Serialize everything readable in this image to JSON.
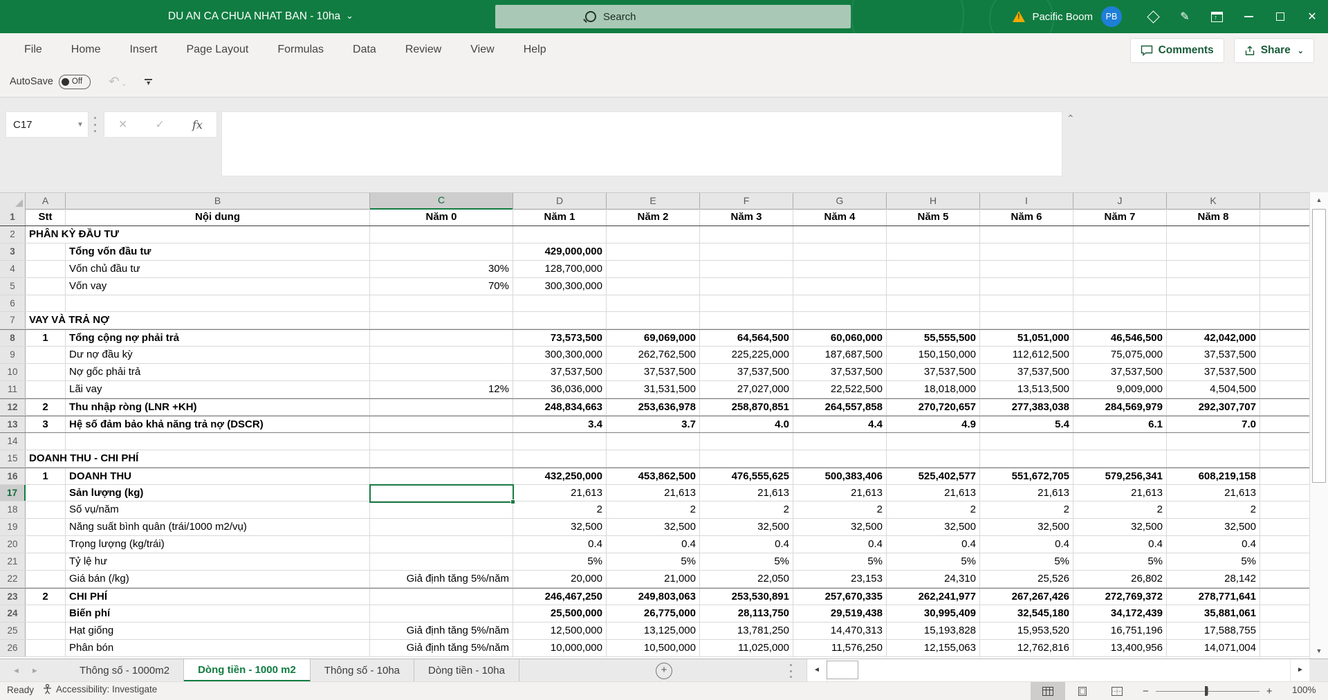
{
  "window": {
    "title": "DU AN CA CHUA NHAT BAN - 10ha",
    "user": "Pacific Boom",
    "avatar_initials": "PB"
  },
  "search": {
    "placeholder": "Search"
  },
  "ribbon": {
    "tabs": [
      "File",
      "Home",
      "Insert",
      "Page Layout",
      "Formulas",
      "Data",
      "Review",
      "View",
      "Help"
    ],
    "comments_label": "Comments",
    "share_label": "Share"
  },
  "quick_access": {
    "autosave_label": "AutoSave",
    "autosave_state": "Off"
  },
  "formula_bar": {
    "name_box": "C17",
    "formula": ""
  },
  "grid": {
    "columns": [
      "A",
      "B",
      "C",
      "D",
      "E",
      "F",
      "G",
      "H",
      "I",
      "J",
      "K"
    ],
    "selected_column": "C",
    "selected_row": 17,
    "selected_cell": "C17",
    "rows": [
      {
        "n": 1,
        "head": true,
        "a": "Stt",
        "b": "Nội dung",
        "c": "Năm 0",
        "v": [
          "Năm 1",
          "Năm 2",
          "Năm 3",
          "Năm 4",
          "Năm 5",
          "Năm 6",
          "Năm 7",
          "Năm 8"
        ]
      },
      {
        "n": 2,
        "span": "PHÂN KỲ ĐẦU TƯ"
      },
      {
        "n": 3,
        "b": "Tổng vốn đầu tư",
        "bold": "all",
        "v": [
          "429,000,000",
          "",
          "",
          "",
          "",
          "",
          "",
          ""
        ]
      },
      {
        "n": 4,
        "b": "Vốn chủ đầu tư",
        "c": "30%",
        "v": [
          "128,700,000",
          "",
          "",
          "",
          "",
          "",
          "",
          ""
        ]
      },
      {
        "n": 5,
        "b": "Vốn vay",
        "c": "70%",
        "v": [
          "300,300,000",
          "",
          "",
          "",
          "",
          "",
          "",
          ""
        ]
      },
      {
        "n": 6
      },
      {
        "n": 7,
        "span": "VAY VÀ TRẢ NỢ"
      },
      {
        "n": 8,
        "a": "1",
        "b": "Tổng cộng nợ phải trả",
        "bold": "all",
        "bt": true,
        "v": [
          "73,573,500",
          "69,069,000",
          "64,564,500",
          "60,060,000",
          "55,555,500",
          "51,051,000",
          "46,546,500",
          "42,042,000"
        ]
      },
      {
        "n": 9,
        "b": "Dư nợ đầu kỳ",
        "v": [
          "300,300,000",
          "262,762,500",
          "225,225,000",
          "187,687,500",
          "150,150,000",
          "112,612,500",
          "75,075,000",
          "37,537,500"
        ]
      },
      {
        "n": 10,
        "b": "Nợ gốc phải trả",
        "v": [
          "37,537,500",
          "37,537,500",
          "37,537,500",
          "37,537,500",
          "37,537,500",
          "37,537,500",
          "37,537,500",
          "37,537,500"
        ]
      },
      {
        "n": 11,
        "b": "Lãi vay",
        "c": "12%",
        "v": [
          "36,036,000",
          "31,531,500",
          "27,027,000",
          "22,522,500",
          "18,018,000",
          "13,513,500",
          "9,009,000",
          "4,504,500"
        ]
      },
      {
        "n": 12,
        "a": "2",
        "b": "Thu nhập ròng (LNR +KH)",
        "bold": "all",
        "bt": true,
        "v": [
          "248,834,663",
          "253,636,978",
          "258,870,851",
          "264,557,858",
          "270,720,657",
          "277,383,038",
          "284,569,979",
          "292,307,707"
        ]
      },
      {
        "n": 13,
        "a": "3",
        "b": "Hệ số đảm bảo khả năng trả nợ (DSCR)",
        "bold": "all",
        "bt": true,
        "bb": true,
        "v": [
          "3.4",
          "3.7",
          "4.0",
          "4.4",
          "4.9",
          "5.4",
          "6.1",
          "7.0"
        ]
      },
      {
        "n": 14
      },
      {
        "n": 15,
        "span": "DOANH THU - CHI PHÍ"
      },
      {
        "n": 16,
        "a": "1",
        "b": "DOANH THU",
        "bold": "all",
        "bt": true,
        "v": [
          "432,250,000",
          "453,862,500",
          "476,555,625",
          "500,383,406",
          "525,402,577",
          "551,672,705",
          "579,256,341",
          "608,219,158"
        ]
      },
      {
        "n": 17,
        "b": "Sản lượng (kg)",
        "bold": "label",
        "v": [
          "21,613",
          "21,613",
          "21,613",
          "21,613",
          "21,613",
          "21,613",
          "21,613",
          "21,613"
        ]
      },
      {
        "n": 18,
        "b": "Số vụ/năm",
        "v": [
          "2",
          "2",
          "2",
          "2",
          "2",
          "2",
          "2",
          "2"
        ]
      },
      {
        "n": 19,
        "b": "Năng suất bình quân (trái/1000 m2/vụ)",
        "v": [
          "32,500",
          "32,500",
          "32,500",
          "32,500",
          "32,500",
          "32,500",
          "32,500",
          "32,500"
        ]
      },
      {
        "n": 20,
        "b": "Trọng lượng (kg/trái)",
        "v": [
          "0.4",
          "0.4",
          "0.4",
          "0.4",
          "0.4",
          "0.4",
          "0.4",
          "0.4"
        ]
      },
      {
        "n": 21,
        "b": "Tỷ lệ hư",
        "v": [
          "5%",
          "5%",
          "5%",
          "5%",
          "5%",
          "5%",
          "5%",
          "5%"
        ]
      },
      {
        "n": 22,
        "b": "Giá bán (/kg)",
        "c": "Giả định tăng 5%/năm",
        "v": [
          "20,000",
          "21,000",
          "22,050",
          "23,153",
          "24,310",
          "25,526",
          "26,802",
          "28,142"
        ]
      },
      {
        "n": 23,
        "a": "2",
        "b": "CHI PHÍ",
        "bold": "all",
        "bt": true,
        "v": [
          "246,467,250",
          "249,803,063",
          "253,530,891",
          "257,670,335",
          "262,241,977",
          "267,267,426",
          "272,769,372",
          "278,771,641"
        ]
      },
      {
        "n": 24,
        "b": "Biến phí",
        "bold": "all",
        "v": [
          "25,500,000",
          "26,775,000",
          "28,113,750",
          "29,519,438",
          "30,995,409",
          "32,545,180",
          "34,172,439",
          "35,881,061"
        ]
      },
      {
        "n": 25,
        "b": "Hạt giống",
        "c": "Giả định tăng 5%/năm",
        "v": [
          "12,500,000",
          "13,125,000",
          "13,781,250",
          "14,470,313",
          "15,193,828",
          "15,953,520",
          "16,751,196",
          "17,588,755"
        ]
      },
      {
        "n": 26,
        "b": "Phân bón",
        "c": "Giả định tăng 5%/năm",
        "v": [
          "10,000,000",
          "10,500,000",
          "11,025,000",
          "11,576,250",
          "12,155,063",
          "12,762,816",
          "13,400,956",
          "14,071,004"
        ]
      }
    ]
  },
  "sheet_tabs": {
    "tabs": [
      "Thông số - 1000m2",
      "Dòng tiền - 1000 m2",
      "Thông số - 10ha",
      "Dòng tiền - 10ha"
    ],
    "active": "Dòng tiền - 1000 m2"
  },
  "status_bar": {
    "mode": "Ready",
    "accessibility": "Accessibility: Investigate",
    "zoom": "100%"
  },
  "colors": {
    "titlebar": "#107C41",
    "accent": "#107C41",
    "selection": "#1A7A43",
    "avatar": "#1E7FD6"
  }
}
